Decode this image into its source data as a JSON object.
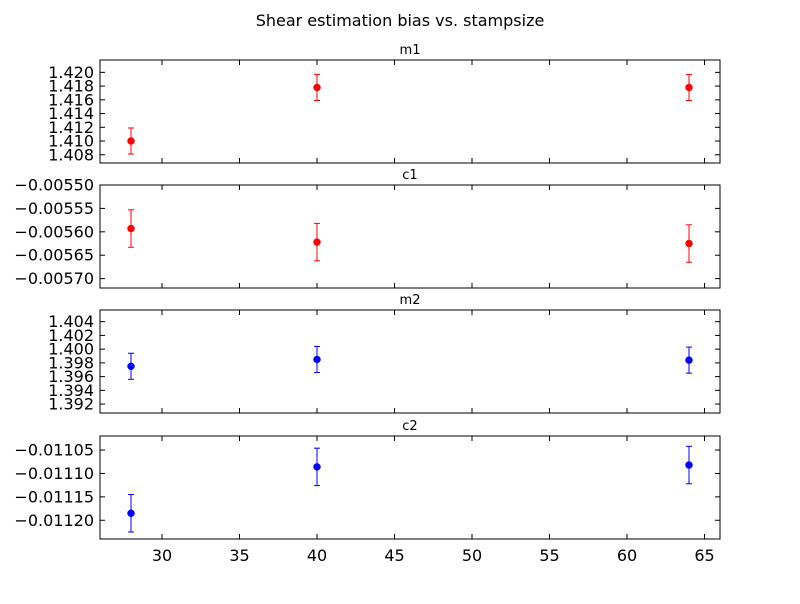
{
  "chart_data": {
    "type": "scatter",
    "title": "Shear estimation bias vs. stampsize",
    "xlim": [
      26,
      66
    ],
    "xticks": [
      30,
      35,
      40,
      45,
      50,
      55,
      60,
      65
    ],
    "x": [
      28,
      40,
      64
    ],
    "panels": [
      {
        "title": "m1",
        "color": "#ff0000",
        "ylim": [
          1.4068,
          1.4218
        ],
        "yticks": [
          "1.408",
          "1.410",
          "1.412",
          "1.414",
          "1.416",
          "1.418",
          "1.420"
        ],
        "values": [
          1.41,
          1.4178,
          1.4178
        ],
        "errors": [
          0.0019,
          0.0019,
          0.0019
        ]
      },
      {
        "title": "c1",
        "color": "#ff0000",
        "ylim": [
          -0.00572,
          -0.0055
        ],
        "yticks": [
          "−0.00570",
          "−0.00565",
          "−0.00560",
          "−0.00555",
          "−0.00550"
        ],
        "values": [
          -0.005593,
          -0.005622,
          -0.005625
        ],
        "errors": [
          4e-05,
          4e-05,
          4e-05
        ]
      },
      {
        "title": "m2",
        "color": "#0000ff",
        "ylim": [
          1.3907,
          1.4057
        ],
        "yticks": [
          "1.392",
          "1.394",
          "1.396",
          "1.398",
          "1.400",
          "1.402",
          "1.404"
        ],
        "values": [
          1.3975,
          1.3985,
          1.3984
        ],
        "errors": [
          0.0019,
          0.0019,
          0.0019
        ]
      },
      {
        "title": "c2",
        "color": "#0000ff",
        "ylim": [
          -0.01124,
          -0.01102
        ],
        "yticks": [
          "−0.01120",
          "−0.01115",
          "−0.01110",
          "−0.01105"
        ],
        "values": [
          -0.011185,
          -0.011086,
          -0.011082
        ],
        "errors": [
          4e-05,
          4e-05,
          4e-05
        ]
      }
    ]
  }
}
